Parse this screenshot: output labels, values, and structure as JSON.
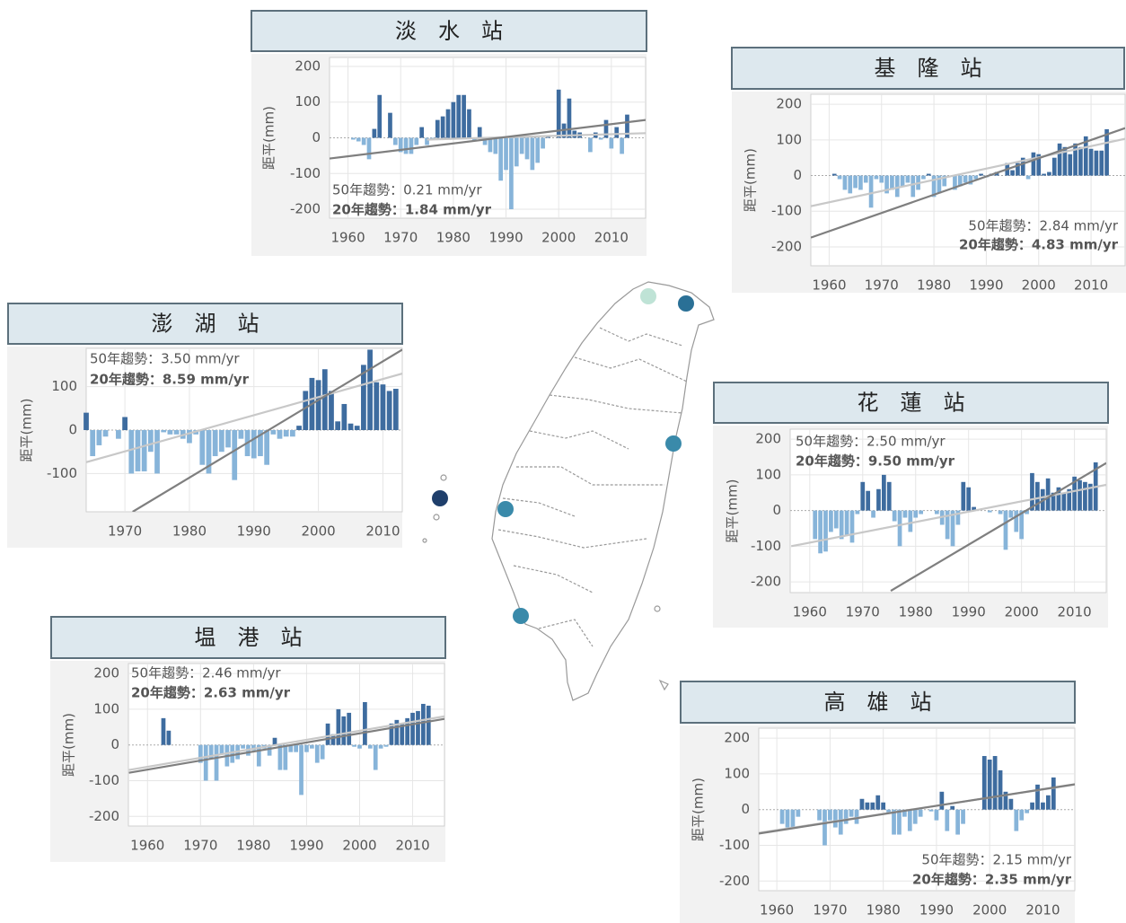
{
  "chart_data": [
    {
      "type": "bar",
      "title": "淡　水　站",
      "ylabel": "距平(mm)",
      "x": [
        1961,
        1962,
        1963,
        1964,
        1965,
        1966,
        1967,
        1968,
        1969,
        1970,
        1971,
        1972,
        1973,
        1974,
        1975,
        1976,
        1977,
        1978,
        1979,
        1980,
        1981,
        1982,
        1983,
        1984,
        1985,
        1986,
        1987,
        1988,
        1989,
        1990,
        1991,
        1992,
        1993,
        1994,
        1995,
        1996,
        1997,
        1998,
        1999,
        2000,
        2001,
        2002,
        2003,
        2004,
        2005,
        2006,
        2007,
        2008,
        2009,
        2010,
        2011,
        2012,
        2013
      ],
      "values": [
        -5,
        -10,
        -20,
        -60,
        25,
        120,
        0,
        70,
        -20,
        -40,
        -45,
        -45,
        -20,
        30,
        -20,
        -5,
        50,
        60,
        80,
        100,
        120,
        120,
        80,
        -10,
        30,
        -20,
        -40,
        -45,
        -120,
        -90,
        -200,
        -80,
        -45,
        -60,
        -90,
        -70,
        -30,
        5,
        0,
        135,
        40,
        110,
        20,
        15,
        0,
        -40,
        15,
        -5,
        50,
        -30,
        30,
        -45,
        65
      ],
      "colors": {
        "positive": "#3e6c9f",
        "negative": "#87b4d9"
      },
      "trend_lines": [
        {
          "color": "#c8c8c8",
          "x": [
            1975,
            2016.5
          ],
          "values": [
            -5,
            13
          ]
        },
        {
          "color": "#7f7f7f",
          "x": [
            1956.5,
            2016.5
          ],
          "values": [
            -58,
            50
          ]
        }
      ],
      "annotations": [
        "50年趨勢：0.21 mm/yr",
        "20年趨勢：1.84 mm/yr"
      ],
      "xlim": [
        1956.5,
        2016.5
      ],
      "ylim": [
        -225,
        225
      ],
      "xticks": [
        1960,
        1970,
        1980,
        1990,
        2000,
        2010
      ],
      "yticks": [
        -200,
        -100,
        0,
        100,
        200
      ],
      "grid": true
    },
    {
      "type": "bar",
      "title": "基　隆　站",
      "ylabel": "距平(mm)",
      "x": [
        1961,
        1962,
        1963,
        1964,
        1965,
        1966,
        1967,
        1968,
        1969,
        1970,
        1971,
        1972,
        1973,
        1974,
        1975,
        1976,
        1977,
        1978,
        1979,
        1980,
        1981,
        1982,
        1983,
        1984,
        1985,
        1986,
        1987,
        1988,
        1989,
        1990,
        1991,
        1992,
        1993,
        1994,
        1995,
        1996,
        1997,
        1998,
        1999,
        2000,
        2001,
        2002,
        2003,
        2004,
        2005,
        2006,
        2007,
        2008,
        2009,
        2010,
        2011,
        2012,
        2013
      ],
      "values": [
        5,
        -10,
        -40,
        -50,
        -35,
        -40,
        -20,
        -90,
        -10,
        -20,
        -50,
        -40,
        -60,
        -30,
        -20,
        -60,
        -40,
        -10,
        5,
        -60,
        -50,
        -30,
        0,
        -40,
        -30,
        -20,
        -25,
        -10,
        5,
        -5,
        5,
        10,
        0,
        35,
        15,
        35,
        50,
        -10,
        65,
        60,
        5,
        10,
        50,
        90,
        80,
        60,
        90,
        80,
        110,
        75,
        70,
        70,
        130
      ],
      "colors": {
        "positive": "#3e6c9f",
        "negative": "#87b4d9"
      },
      "trend_lines": [
        {
          "color": "#c8c8c8",
          "x": [
            1956.5,
            2016.5
          ],
          "values": [
            -86,
            103
          ]
        },
        {
          "color": "#7f7f7f",
          "x": [
            1956.5,
            2016.5
          ],
          "values": [
            -174,
            133
          ]
        }
      ],
      "annotations": [
        "50年趨勢：2.84 mm/yr",
        "20年趨勢：4.83 mm/yr"
      ],
      "xlim": [
        1956.5,
        2016.5
      ],
      "ylim": [
        -253,
        228
      ],
      "xticks": [
        1960,
        1970,
        1980,
        1990,
        2000,
        2010
      ],
      "yticks": [
        -200,
        -100,
        0,
        100,
        200
      ],
      "grid": true
    },
    {
      "type": "bar",
      "title": "澎　湖　站",
      "ylabel": "距平(mm)",
      "x": [
        1964,
        1965,
        1966,
        1967,
        1968,
        1969,
        1970,
        1971,
        1972,
        1973,
        1974,
        1975,
        1976,
        1977,
        1978,
        1979,
        1980,
        1981,
        1982,
        1983,
        1984,
        1985,
        1986,
        1987,
        1988,
        1989,
        1990,
        1991,
        1992,
        1993,
        1994,
        1995,
        1996,
        1997,
        1998,
        1999,
        2000,
        2001,
        2002,
        2003,
        2004,
        2005,
        2006,
        2007,
        2008,
        2009,
        2010,
        2011,
        2012
      ],
      "values": [
        40,
        -60,
        -35,
        -15,
        0,
        -20,
        30,
        -100,
        -95,
        -95,
        -50,
        -100,
        -5,
        -10,
        -10,
        -20,
        -30,
        -10,
        -80,
        -100,
        -60,
        -50,
        -40,
        -115,
        -20,
        -60,
        -65,
        -60,
        -80,
        -10,
        -20,
        -15,
        -15,
        10,
        90,
        120,
        115,
        140,
        90,
        20,
        60,
        15,
        10,
        150,
        185,
        110,
        105,
        90,
        95
      ],
      "colors": {
        "positive": "#3e6c9f",
        "negative": "#87b4d9"
      },
      "trend_lines": [
        {
          "color": "#c8c8c8",
          "x": [
            1964,
            2013
          ],
          "values": [
            -74,
            130
          ]
        },
        {
          "color": "#7f7f7f",
          "x": [
            1971.2,
            2013
          ],
          "values": [
            -188,
            185
          ]
        }
      ],
      "annotations": [
        "50年趨勢：3.50 mm/yr",
        "20年趨勢：8.59 mm/yr"
      ],
      "xlim": [
        1964,
        2013
      ],
      "ylim": [
        -188,
        188
      ],
      "xticks": [
        1970,
        1980,
        1990,
        2000,
        2010
      ],
      "yticks": [
        -100,
        0,
        100
      ],
      "grid": true
    },
    {
      "type": "bar",
      "title": "花　蓮　站",
      "ylabel": "距平(mm)",
      "x": [
        1961,
        1962,
        1963,
        1964,
        1965,
        1966,
        1967,
        1968,
        1969,
        1970,
        1971,
        1972,
        1973,
        1974,
        1975,
        1976,
        1977,
        1978,
        1979,
        1980,
        1981,
        1982,
        1983,
        1984,
        1985,
        1986,
        1987,
        1988,
        1989,
        1990,
        1991,
        1992,
        1993,
        1994,
        1995,
        1996,
        1997,
        1998,
        1999,
        2000,
        2001,
        2002,
        2003,
        2004,
        2005,
        2006,
        2007,
        2008,
        2009,
        2010,
        2011,
        2012,
        2013,
        2014
      ],
      "values": [
        -80,
        -120,
        -115,
        -60,
        -50,
        -80,
        -70,
        -90,
        -10,
        80,
        55,
        -20,
        60,
        100,
        80,
        -30,
        -100,
        -20,
        -60,
        -20,
        -10,
        0,
        0,
        -10,
        -40,
        -80,
        -100,
        -40,
        80,
        65,
        10,
        0,
        0,
        -5,
        0,
        -10,
        -110,
        -20,
        -60,
        -80,
        -10,
        105,
        80,
        60,
        90,
        50,
        65,
        50,
        60,
        95,
        85,
        80,
        75,
        135
      ],
      "colors": {
        "positive": "#3e6c9f",
        "negative": "#87b4d9"
      },
      "trend_lines": [
        {
          "color": "#c8c8c8",
          "x": [
            1956.5,
            2016
          ],
          "values": [
            -100,
            72
          ]
        },
        {
          "color": "#7f7f7f",
          "x": [
            1975.3,
            2016
          ],
          "values": [
            -225,
            133
          ]
        }
      ],
      "annotations": [
        "50年趨勢：2.50 mm/yr",
        "20年趨勢：9.50 mm/yr"
      ],
      "xlim": [
        1956.3,
        2016
      ],
      "ylim": [
        -230,
        228
      ],
      "xticks": [
        1960,
        1970,
        1980,
        1990,
        2000,
        2010
      ],
      "yticks": [
        -200,
        -100,
        0,
        100,
        200
      ],
      "grid": true
    },
    {
      "type": "bar",
      "title": "塭　港　站",
      "ylabel": "距平(mm)",
      "x": [
        1963,
        1964,
        1965,
        1966,
        1967,
        1968,
        1969,
        1970,
        1971,
        1972,
        1973,
        1974,
        1975,
        1976,
        1977,
        1978,
        1979,
        1980,
        1981,
        1982,
        1983,
        1984,
        1985,
        1986,
        1987,
        1988,
        1989,
        1990,
        1991,
        1992,
        1993,
        1994,
        1995,
        1996,
        1997,
        1998,
        1999,
        2000,
        2001,
        2002,
        2003,
        2004,
        2005,
        2006,
        2007,
        2008,
        2009,
        2010,
        2011,
        2012,
        2013
      ],
      "values": [
        75,
        40,
        null,
        null,
        null,
        null,
        null,
        -50,
        -100,
        -40,
        -100,
        -25,
        -60,
        -50,
        -40,
        -10,
        -30,
        -15,
        -60,
        -10,
        -30,
        20,
        -70,
        -70,
        -20,
        -20,
        -140,
        -20,
        -10,
        -50,
        -40,
        60,
        30,
        100,
        80,
        90,
        -5,
        -10,
        120,
        -10,
        -70,
        -10,
        -5,
        60,
        70,
        60,
        75,
        90,
        95,
        115,
        110
      ],
      "colors": {
        "positive": "#3e6c9f",
        "negative": "#87b4d9"
      },
      "trend_lines": [
        {
          "color": "#c8c8c8",
          "x": [
            1956.5,
            2016
          ],
          "values": [
            -70,
            80
          ]
        },
        {
          "color": "#7f7f7f",
          "x": [
            1956.5,
            2016
          ],
          "values": [
            -78,
            73
          ]
        }
      ],
      "annotations": [
        "50年趨勢：2.46 mm/yr",
        "20年趨勢：2.63 mm/yr"
      ],
      "xlim": [
        1956.4,
        2016
      ],
      "ylim": [
        -227,
        228
      ],
      "xticks": [
        1960,
        1970,
        1980,
        1990,
        2000,
        2010
      ],
      "yticks": [
        -200,
        -100,
        0,
        100,
        200
      ],
      "grid": true
    },
    {
      "type": "bar",
      "title": "高　雄　站",
      "ylabel": "距平(mm)",
      "x": [
        1961,
        1962,
        1963,
        1964,
        1965,
        1966,
        1967,
        1968,
        1969,
        1970,
        1971,
        1972,
        1973,
        1974,
        1975,
        1976,
        1977,
        1978,
        1979,
        1980,
        1981,
        1982,
        1983,
        1984,
        1985,
        1986,
        1987,
        1988,
        1989,
        1990,
        1991,
        1992,
        1993,
        1994,
        1995,
        1996,
        1997,
        1998,
        1999,
        2000,
        2001,
        2002,
        2003,
        2004,
        2005,
        2006,
        2007,
        2008,
        2009,
        2010,
        2011,
        2012
      ],
      "values": [
        -40,
        -50,
        -50,
        -20,
        null,
        null,
        null,
        -30,
        -100,
        -30,
        -50,
        -70,
        -40,
        -20,
        -40,
        30,
        20,
        20,
        40,
        20,
        -10,
        -70,
        -70,
        -20,
        -60,
        -40,
        -20,
        0,
        -5,
        -30,
        50,
        -60,
        10,
        -70,
        -40,
        null,
        null,
        null,
        150,
        140,
        150,
        110,
        50,
        30,
        -60,
        -30,
        -10,
        20,
        70,
        20,
        40,
        90
      ],
      "colors": {
        "positive": "#3e6c9f",
        "negative": "#87b4d9"
      },
      "trend_lines": [
        {
          "color": "#c8c8c8",
          "x": [
            1956.6,
            2016
          ],
          "values": [
            -65,
            70
          ]
        },
        {
          "color": "#7f7f7f",
          "x": [
            1956.6,
            2016
          ],
          "values": [
            -67,
            71
          ]
        }
      ],
      "annotations": [
        "50年趨勢：2.15 mm/yr",
        "20年趨勢：2.35 mm/yr"
      ],
      "xlim": [
        1956.6,
        2016
      ],
      "ylim": [
        -227,
        228
      ],
      "xticks": [
        1960,
        1970,
        1980,
        1990,
        2000,
        2010
      ],
      "yticks": [
        -200,
        -100,
        0,
        100,
        200
      ],
      "grid": true
    }
  ]
}
